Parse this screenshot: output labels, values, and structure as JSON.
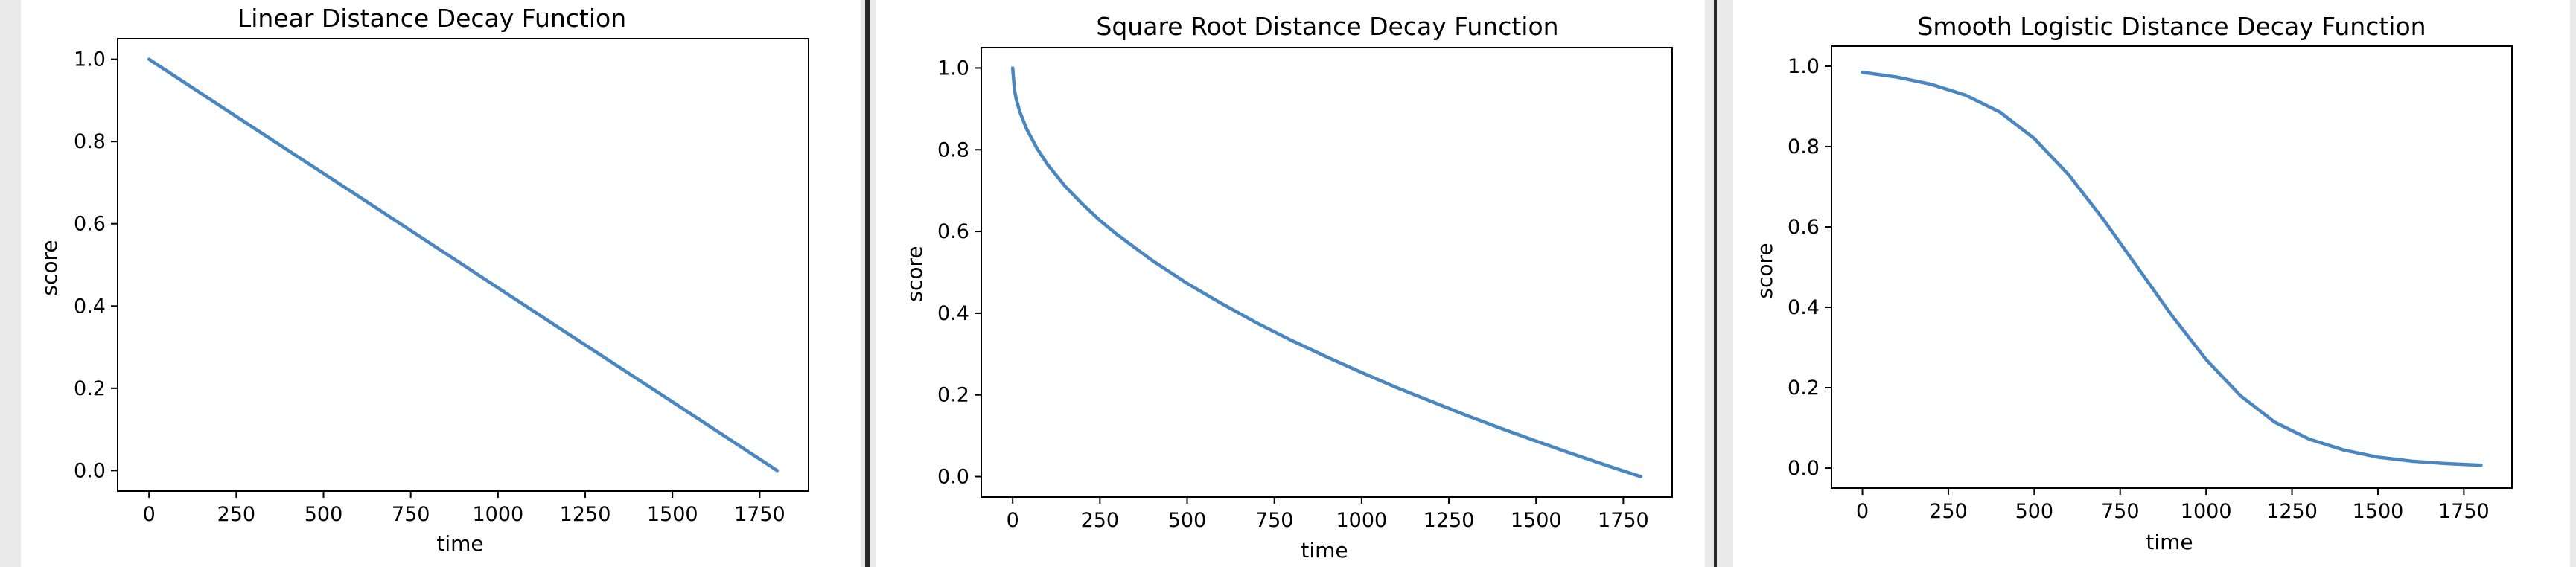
{
  "colors": {
    "line": "#4a86c0",
    "background": "#262626",
    "panel": "#ffffff"
  },
  "chart_data": [
    {
      "type": "line",
      "title": "Linear Distance Decay Function",
      "xlabel": "time",
      "ylabel": "score",
      "xlim": [
        -90,
        1890
      ],
      "ylim": [
        -0.05,
        1.05
      ],
      "xticks": [
        0,
        250,
        500,
        750,
        1000,
        1250,
        1500,
        1750
      ],
      "yticks": [
        0.0,
        0.2,
        0.4,
        0.6,
        0.8,
        1.0
      ],
      "xtick_labels": [
        "0",
        "250",
        "500",
        "750",
        "1000",
        "1250",
        "1500",
        "1750"
      ],
      "ytick_labels": [
        "0.0",
        "0.2",
        "0.4",
        "0.6",
        "0.8",
        "1.0"
      ],
      "grid": false,
      "series": [
        {
          "x": [
            0,
            300,
            600,
            900,
            1200,
            1500,
            1800
          ],
          "y": [
            1.0,
            0.833,
            0.667,
            0.5,
            0.333,
            0.167,
            0.0
          ]
        }
      ]
    },
    {
      "type": "line",
      "title": "Square Root Distance Decay Function",
      "xlabel": "time",
      "ylabel": "score",
      "xlim": [
        -90,
        1890
      ],
      "ylim": [
        -0.05,
        1.05
      ],
      "xticks": [
        0,
        250,
        500,
        750,
        1000,
        1250,
        1500,
        1750
      ],
      "yticks": [
        0.0,
        0.2,
        0.4,
        0.6,
        0.8,
        1.0
      ],
      "xtick_labels": [
        "0",
        "250",
        "500",
        "750",
        "1000",
        "1250",
        "1500",
        "1750"
      ],
      "ytick_labels": [
        "0.0",
        "0.2",
        "0.4",
        "0.6",
        "0.8",
        "1.0"
      ],
      "grid": false,
      "series": [
        {
          "x": [
            0,
            5,
            10,
            20,
            40,
            70,
            100,
            150,
            200,
            250,
            300,
            400,
            500,
            600,
            700,
            800,
            900,
            1000,
            1100,
            1200,
            1300,
            1400,
            1500,
            1600,
            1700,
            1800
          ],
          "y": [
            1.0,
            0.947,
            0.925,
            0.894,
            0.851,
            0.803,
            0.764,
            0.711,
            0.667,
            0.627,
            0.592,
            0.529,
            0.473,
            0.423,
            0.376,
            0.333,
            0.293,
            0.255,
            0.218,
            0.184,
            0.15,
            0.118,
            0.087,
            0.057,
            0.028,
            0.0
          ]
        }
      ]
    },
    {
      "type": "line",
      "title": "Smooth Logistic Distance Decay Function",
      "xlabel": "time",
      "ylabel": "score",
      "xlim": [
        -90,
        1890
      ],
      "ylim": [
        -0.05,
        1.05
      ],
      "xticks": [
        0,
        250,
        500,
        750,
        1000,
        1250,
        1500,
        1750
      ],
      "yticks": [
        0.0,
        0.2,
        0.4,
        0.6,
        0.8,
        1.0
      ],
      "xtick_labels": [
        "0",
        "250",
        "500",
        "750",
        "1000",
        "1250",
        "1500",
        "1750"
      ],
      "ytick_labels": [
        "0.0",
        "0.2",
        "0.4",
        "0.6",
        "0.8",
        "1.0"
      ],
      "grid": false,
      "series": [
        {
          "x": [
            0,
            100,
            200,
            300,
            400,
            500,
            600,
            700,
            800,
            900,
            1000,
            1100,
            1200,
            1300,
            1400,
            1500,
            1600,
            1700,
            1800
          ],
          "y": [
            0.985,
            0.973,
            0.955,
            0.928,
            0.886,
            0.82,
            0.73,
            0.62,
            0.5,
            0.38,
            0.27,
            0.18,
            0.114,
            0.072,
            0.045,
            0.027,
            0.017,
            0.011,
            0.007
          ]
        }
      ]
    }
  ]
}
